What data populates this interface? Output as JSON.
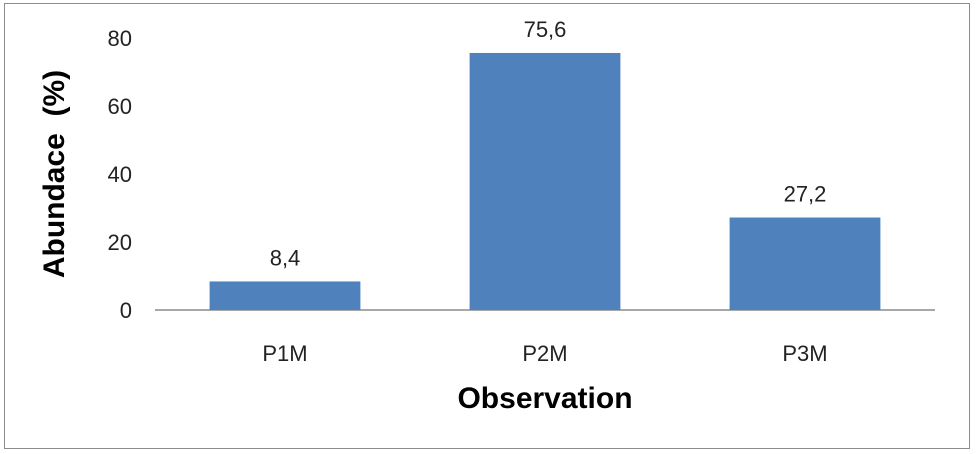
{
  "chart_data": {
    "type": "bar",
    "categories": [
      "P1M",
      "P2M",
      "P3M"
    ],
    "values": [
      8.4,
      75.6,
      27.2
    ],
    "data_labels": [
      "8,4",
      "75,6",
      "27,2"
    ],
    "title": "",
    "xlabel": "Observation",
    "ylabel": "Abundace  (%)",
    "ylim": [
      0,
      80
    ],
    "yticks": [
      "0",
      "20",
      "40",
      "60",
      "80"
    ],
    "ytick_values": [
      0,
      20,
      40,
      60,
      80
    ],
    "grid": false,
    "legend": "none",
    "bar_color": "#4f81bd"
  }
}
